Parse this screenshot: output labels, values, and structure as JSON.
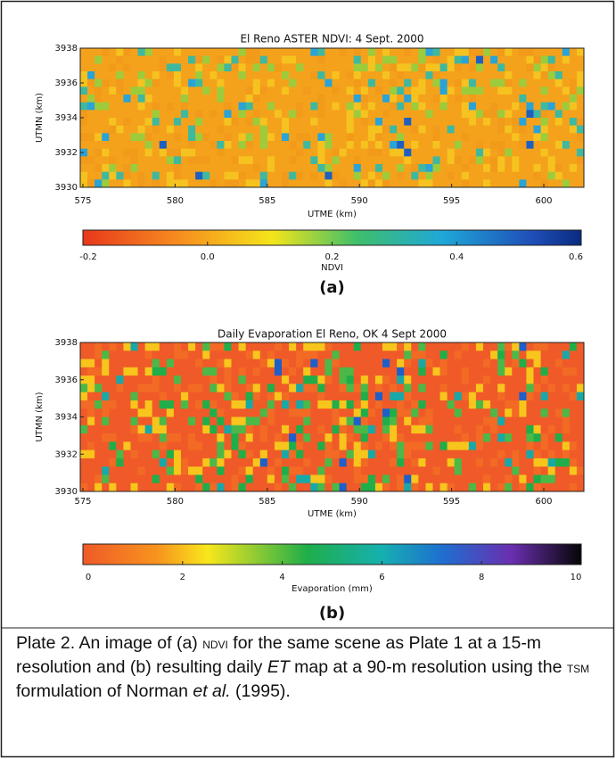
{
  "panels": [
    {
      "title": "El Reno ASTER NDVI: 4 Sept. 2000",
      "xlabel": "UTME (km)",
      "ylabel": "UTMN (km)",
      "xticks": [
        "575",
        "580",
        "585",
        "590",
        "595",
        "600"
      ],
      "yticks": [
        "3930",
        "3932",
        "3934",
        "3936",
        "3938"
      ],
      "colorbar_label": "NDVI",
      "colorbar_ticks": [
        "-0.2",
        "0.0",
        "0.2",
        "0.4",
        "0.6"
      ],
      "tag": "(a)"
    },
    {
      "title": "Daily Evaporation El Reno, OK 4 Sept 2000",
      "xlabel": "UTME (km)",
      "ylabel": "UTMN (km)",
      "xticks": [
        "575",
        "580",
        "585",
        "590",
        "595",
        "600"
      ],
      "yticks": [
        "3930",
        "3932",
        "3934",
        "3936",
        "3938"
      ],
      "colorbar_label": "Evaporation (mm)",
      "colorbar_ticks": [
        "0",
        "2",
        "4",
        "6",
        "8",
        "10"
      ],
      "tag": "(b)"
    }
  ],
  "caption": [
    "Plate 2. An image of (a) ",
    "NDVI",
    " for the same scene as Plate 1 at a 15-m resolution and (b) resulting daily ",
    "ET",
    " map at a 90-m resolution using the ",
    "TSM",
    " formulation of Norman ",
    "et al.",
    " (1995)."
  ]
}
